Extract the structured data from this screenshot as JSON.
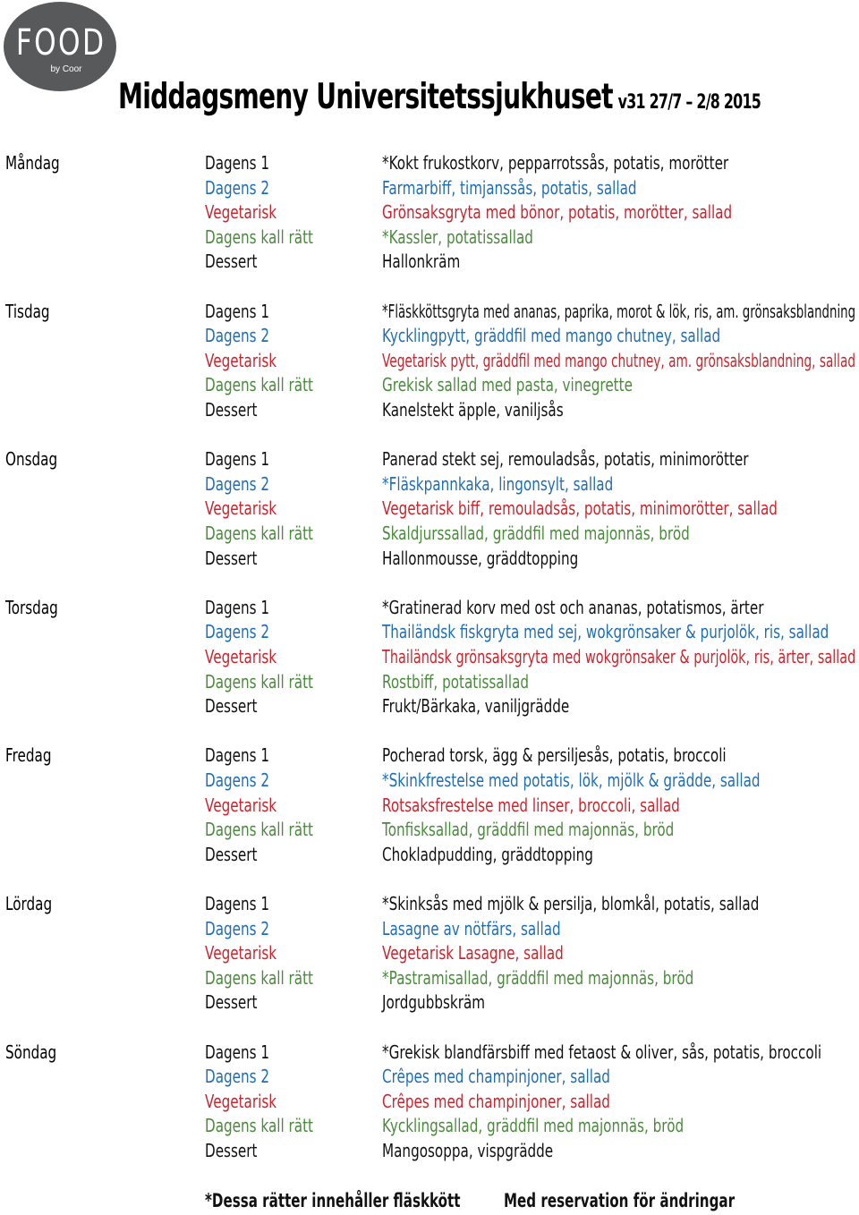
{
  "logo": {
    "word": "FOOD",
    "sub": "by Coor"
  },
  "header": {
    "title": "Middagsmeny Universitetssjukhuset",
    "week": "v31 27/7 – 2/8 2015"
  },
  "colors": {
    "dagens1": "#111111",
    "dagens2": "#1f6db5",
    "vegetarisk": "#d0222a",
    "kall": "#4a8a3c",
    "dessert": "#111111"
  },
  "days": [
    {
      "name": "Måndag",
      "items": [
        {
          "category": "Dagens 1",
          "dish": "*Kokt frukostkorv, pepparrotssås, potatis, morötter",
          "color": "black"
        },
        {
          "category": "Dagens 2",
          "dish": "Farmarbiff, timjanssås, potatis, sallad",
          "color": "blue"
        },
        {
          "category": "Vegetarisk",
          "dish": "Grönsaksgryta med bönor, potatis, morötter, sallad",
          "color": "red"
        },
        {
          "category": "Dagens kall rätt",
          "dish": "*Kassler, potatissallad",
          "color": "green"
        },
        {
          "category": "Dessert",
          "dish": "Hallonkräm",
          "color": "black"
        }
      ]
    },
    {
      "name": "Tisdag",
      "items": [
        {
          "category": "Dagens 1",
          "dish": "*Fläskköttsgryta med ananas, paprika, morot & lök, ris, am. grönsaksblandning",
          "color": "black"
        },
        {
          "category": "Dagens 2",
          "dish": "Kycklingpytt, gräddfil med mango chutney, sallad",
          "color": "blue"
        },
        {
          "category": "Vegetarisk",
          "dish": "Vegetarisk pytt, gräddfil med mango chutney, am. grönsaksblandning, sallad",
          "color": "red"
        },
        {
          "category": "Dagens kall rätt",
          "dish": "Grekisk sallad med pasta, vinegrette",
          "color": "green"
        },
        {
          "category": "Dessert",
          "dish": "Kanelstekt äpple, vaniljsås",
          "color": "black"
        }
      ]
    },
    {
      "name": "Onsdag",
      "items": [
        {
          "category": "Dagens 1",
          "dish": "Panerad stekt sej, remouladsås, potatis, minimorötter",
          "color": "black"
        },
        {
          "category": "Dagens 2",
          "dish": "*Fläskpannkaka, lingonsylt, sallad",
          "color": "blue"
        },
        {
          "category": "Vegetarisk",
          "dish": "Vegetarisk biff, remouladsås, potatis, minimorötter, sallad",
          "color": "red"
        },
        {
          "category": "Dagens kall rätt",
          "dish": " Skaldjurssallad, gräddfil med majonnäs, bröd",
          "color": "green"
        },
        {
          "category": "Dessert",
          "dish": "Hallonmousse, gräddtopping",
          "color": "black"
        }
      ]
    },
    {
      "name": "Torsdag",
      "items": [
        {
          "category": "Dagens 1",
          "dish": "*Gratinerad korv med ost och ananas, potatismos, ärter",
          "color": "black"
        },
        {
          "category": "Dagens 2",
          "dish": "Thailändsk fiskgryta med sej, wokgrönsaker & purjolök, ris, sallad",
          "color": "blue"
        },
        {
          "category": "Vegetarisk",
          "dish": "Thailändsk grönsaksgryta med wokgrönsaker & purjolök, ris, ärter, sallad",
          "color": "red"
        },
        {
          "category": "Dagens kall rätt",
          "dish": "Rostbiff, potatissallad",
          "color": "green"
        },
        {
          "category": "Dessert",
          "dish": "Frukt/Bärkaka, vaniljgrädde",
          "color": "black"
        }
      ]
    },
    {
      "name": "Fredag",
      "items": [
        {
          "category": "Dagens 1",
          "dish": "Pocherad torsk, ägg & persiljesås, potatis, broccoli",
          "color": "black"
        },
        {
          "category": "Dagens 2",
          "dish": "*Skinkfrestelse med potatis, lök, mjölk & grädde, sallad",
          "color": "blue"
        },
        {
          "category": "Vegetarisk",
          "dish": "Rotsaksfrestelse med linser, broccoli, sallad",
          "color": "red"
        },
        {
          "category": "Dagens kall rätt",
          "dish": "Tonfisksallad, gräddfil med majonnäs, bröd",
          "color": "green"
        },
        {
          "category": "Dessert",
          "dish": "Chokladpudding, gräddtopping",
          "color": "black"
        }
      ]
    },
    {
      "name": "Lördag",
      "items": [
        {
          "category": "Dagens 1",
          "dish": "*Skinksås med mjölk & persilja, blomkål, potatis, sallad",
          "color": "black"
        },
        {
          "category": "Dagens 2",
          "dish": "Lasagne av nötfärs, sallad",
          "color": "blue"
        },
        {
          "category": "Vegetarisk",
          "dish": "Vegetarisk Lasagne, sallad",
          "color": "red"
        },
        {
          "category": "Dagens kall rätt",
          "dish": "*Pastramisallad, gräddfil med majonnäs, bröd",
          "color": "green"
        },
        {
          "category": "Dessert",
          "dish": "Jordgubbskräm",
          "color": "black"
        }
      ]
    },
    {
      "name": "Söndag",
      "items": [
        {
          "category": "Dagens 1",
          "dish": "*Grekisk blandfärsbiff med fetaost & oliver, sås, potatis, broccoli",
          "color": "black"
        },
        {
          "category": "Dagens 2",
          "dish": "Crêpes med champinjoner, sallad",
          "color": "blue"
        },
        {
          "category": "Vegetarisk",
          "dish": "Crêpes med champinjoner, sallad",
          "color": "red"
        },
        {
          "category": "Dagens kall rätt",
          "dish": "Kycklingsallad, gräddfil med majonnäs, bröd",
          "color": "green"
        },
        {
          "category": "Dessert",
          "dish": "Mangosoppa, vispgrädde",
          "color": "black"
        }
      ]
    }
  ],
  "footer": {
    "note": "*Dessa rätter innehåller fläskkött",
    "reservation": "Med reservation för ändringar"
  }
}
